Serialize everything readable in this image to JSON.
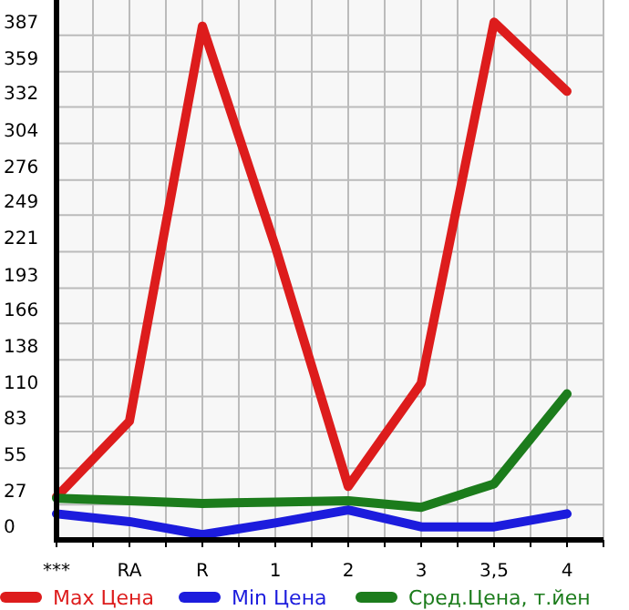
{
  "chart_data": {
    "type": "line",
    "categories": [
      "***",
      "RA",
      "R",
      "1",
      "2",
      "3",
      "3,5",
      "4"
    ],
    "series": [
      {
        "name": "Max Цена",
        "color": "#dd1c1c",
        "values": [
          33,
          91,
          394,
          225,
          41,
          120,
          397,
          344
        ]
      },
      {
        "name": "Min Цена",
        "color": "#1c1cdd",
        "values": [
          20,
          14,
          4,
          13,
          23,
          10,
          10,
          20
        ]
      },
      {
        "name": "Сред.Цена, т.йен",
        "color": "#1c7c1c",
        "values": [
          32,
          30,
          28,
          29,
          30,
          25,
          43,
          112
        ]
      }
    ],
    "ylim": [
      0,
      414
    ],
    "yticks": [
      0,
      27,
      55,
      83,
      110,
      138,
      166,
      193,
      221,
      249,
      276,
      304,
      332,
      359,
      387
    ],
    "grid": true,
    "legend": "bottom",
    "marker": "none",
    "line_style": "solid"
  }
}
